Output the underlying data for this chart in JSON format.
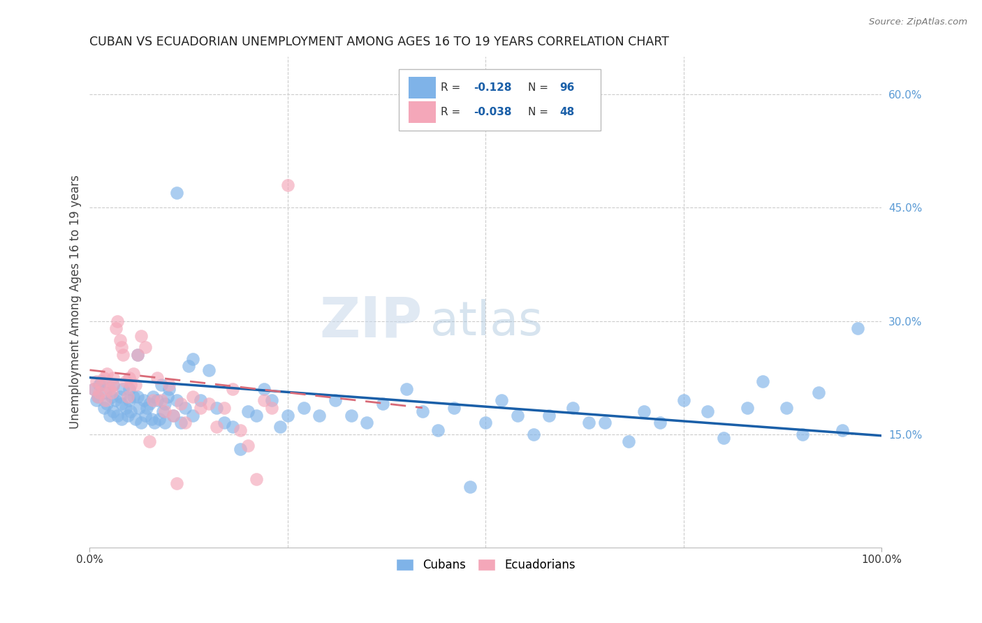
{
  "title": "CUBAN VS ECUADORIAN UNEMPLOYMENT AMONG AGES 16 TO 19 YEARS CORRELATION CHART",
  "source": "Source: ZipAtlas.com",
  "ylabel": "Unemployment Among Ages 16 to 19 years",
  "xlim": [
    0,
    1.0
  ],
  "ylim": [
    0.0,
    0.65
  ],
  "y_tick_values_right": [
    0.15,
    0.3,
    0.45,
    0.6
  ],
  "y_tick_labels_right": [
    "15.0%",
    "30.0%",
    "45.0%",
    "60.0%"
  ],
  "cuban_color": "#7fb3e8",
  "ecuadorian_color": "#f4a7b9",
  "cuban_line_color": "#1a5fa8",
  "ecuadorian_line_color": "#d96b78",
  "cuban_R": "-0.128",
  "cuban_N": "96",
  "ecuadorian_R": "-0.038",
  "ecuadorian_N": "48",
  "legend_label_1": "Cubans",
  "legend_label_2": "Ecuadorians",
  "watermark_zip": "ZIP",
  "watermark_atlas": "atlas",
  "background_color": "#ffffff",
  "grid_color": "#cccccc",
  "title_color": "#222222",
  "right_tick_color": "#5b9bd5",
  "cuban_x": [
    0.005,
    0.008,
    0.01,
    0.012,
    0.015,
    0.018,
    0.02,
    0.022,
    0.025,
    0.028,
    0.03,
    0.03,
    0.032,
    0.035,
    0.038,
    0.04,
    0.04,
    0.042,
    0.045,
    0.048,
    0.05,
    0.05,
    0.052,
    0.055,
    0.058,
    0.06,
    0.062,
    0.065,
    0.068,
    0.07,
    0.072,
    0.075,
    0.078,
    0.08,
    0.082,
    0.085,
    0.088,
    0.09,
    0.092,
    0.095,
    0.098,
    0.1,
    0.105,
    0.11,
    0.115,
    0.12,
    0.125,
    0.13,
    0.14,
    0.15,
    0.16,
    0.17,
    0.18,
    0.19,
    0.2,
    0.21,
    0.22,
    0.23,
    0.24,
    0.25,
    0.27,
    0.29,
    0.31,
    0.33,
    0.35,
    0.37,
    0.4,
    0.42,
    0.44,
    0.46,
    0.48,
    0.5,
    0.52,
    0.54,
    0.56,
    0.58,
    0.61,
    0.63,
    0.65,
    0.68,
    0.7,
    0.72,
    0.75,
    0.78,
    0.8,
    0.83,
    0.85,
    0.88,
    0.9,
    0.92,
    0.95,
    0.97,
    0.13,
    0.095,
    0.06,
    0.11
  ],
  "cuban_y": [
    0.21,
    0.195,
    0.2,
    0.215,
    0.22,
    0.185,
    0.205,
    0.19,
    0.175,
    0.2,
    0.215,
    0.18,
    0.195,
    0.175,
    0.2,
    0.19,
    0.17,
    0.21,
    0.185,
    0.175,
    0.21,
    0.195,
    0.18,
    0.2,
    0.17,
    0.2,
    0.185,
    0.165,
    0.195,
    0.175,
    0.185,
    0.19,
    0.17,
    0.2,
    0.165,
    0.195,
    0.17,
    0.215,
    0.18,
    0.19,
    0.2,
    0.21,
    0.175,
    0.195,
    0.165,
    0.185,
    0.24,
    0.175,
    0.195,
    0.235,
    0.185,
    0.165,
    0.16,
    0.13,
    0.18,
    0.175,
    0.21,
    0.195,
    0.16,
    0.175,
    0.185,
    0.175,
    0.195,
    0.175,
    0.165,
    0.19,
    0.21,
    0.18,
    0.155,
    0.185,
    0.08,
    0.165,
    0.195,
    0.175,
    0.15,
    0.175,
    0.185,
    0.165,
    0.165,
    0.14,
    0.18,
    0.165,
    0.195,
    0.18,
    0.145,
    0.185,
    0.22,
    0.185,
    0.15,
    0.205,
    0.155,
    0.29,
    0.25,
    0.165,
    0.255,
    0.47
  ],
  "ecuadorian_x": [
    0.005,
    0.008,
    0.01,
    0.012,
    0.015,
    0.018,
    0.02,
    0.022,
    0.025,
    0.028,
    0.03,
    0.03,
    0.033,
    0.035,
    0.038,
    0.04,
    0.042,
    0.045,
    0.048,
    0.05,
    0.052,
    0.055,
    0.058,
    0.06,
    0.065,
    0.07,
    0.075,
    0.08,
    0.085,
    0.09,
    0.095,
    0.1,
    0.105,
    0.11,
    0.115,
    0.12,
    0.13,
    0.14,
    0.15,
    0.16,
    0.17,
    0.18,
    0.19,
    0.2,
    0.21,
    0.22,
    0.23,
    0.25
  ],
  "ecuadorian_y": [
    0.21,
    0.22,
    0.2,
    0.205,
    0.215,
    0.225,
    0.195,
    0.23,
    0.21,
    0.205,
    0.225,
    0.215,
    0.29,
    0.3,
    0.275,
    0.265,
    0.255,
    0.22,
    0.2,
    0.225,
    0.215,
    0.23,
    0.215,
    0.255,
    0.28,
    0.265,
    0.14,
    0.195,
    0.225,
    0.195,
    0.18,
    0.215,
    0.175,
    0.085,
    0.19,
    0.165,
    0.2,
    0.185,
    0.19,
    0.16,
    0.185,
    0.21,
    0.155,
    0.135,
    0.09,
    0.195,
    0.185,
    0.48
  ],
  "cuban_line_x": [
    0.0,
    1.0
  ],
  "cuban_line_y_start": 0.225,
  "cuban_line_y_end": 0.148,
  "ecuadorian_line_x": [
    0.0,
    0.42
  ],
  "ecuadorian_line_y_start": 0.235,
  "ecuadorian_line_y_end": 0.185
}
